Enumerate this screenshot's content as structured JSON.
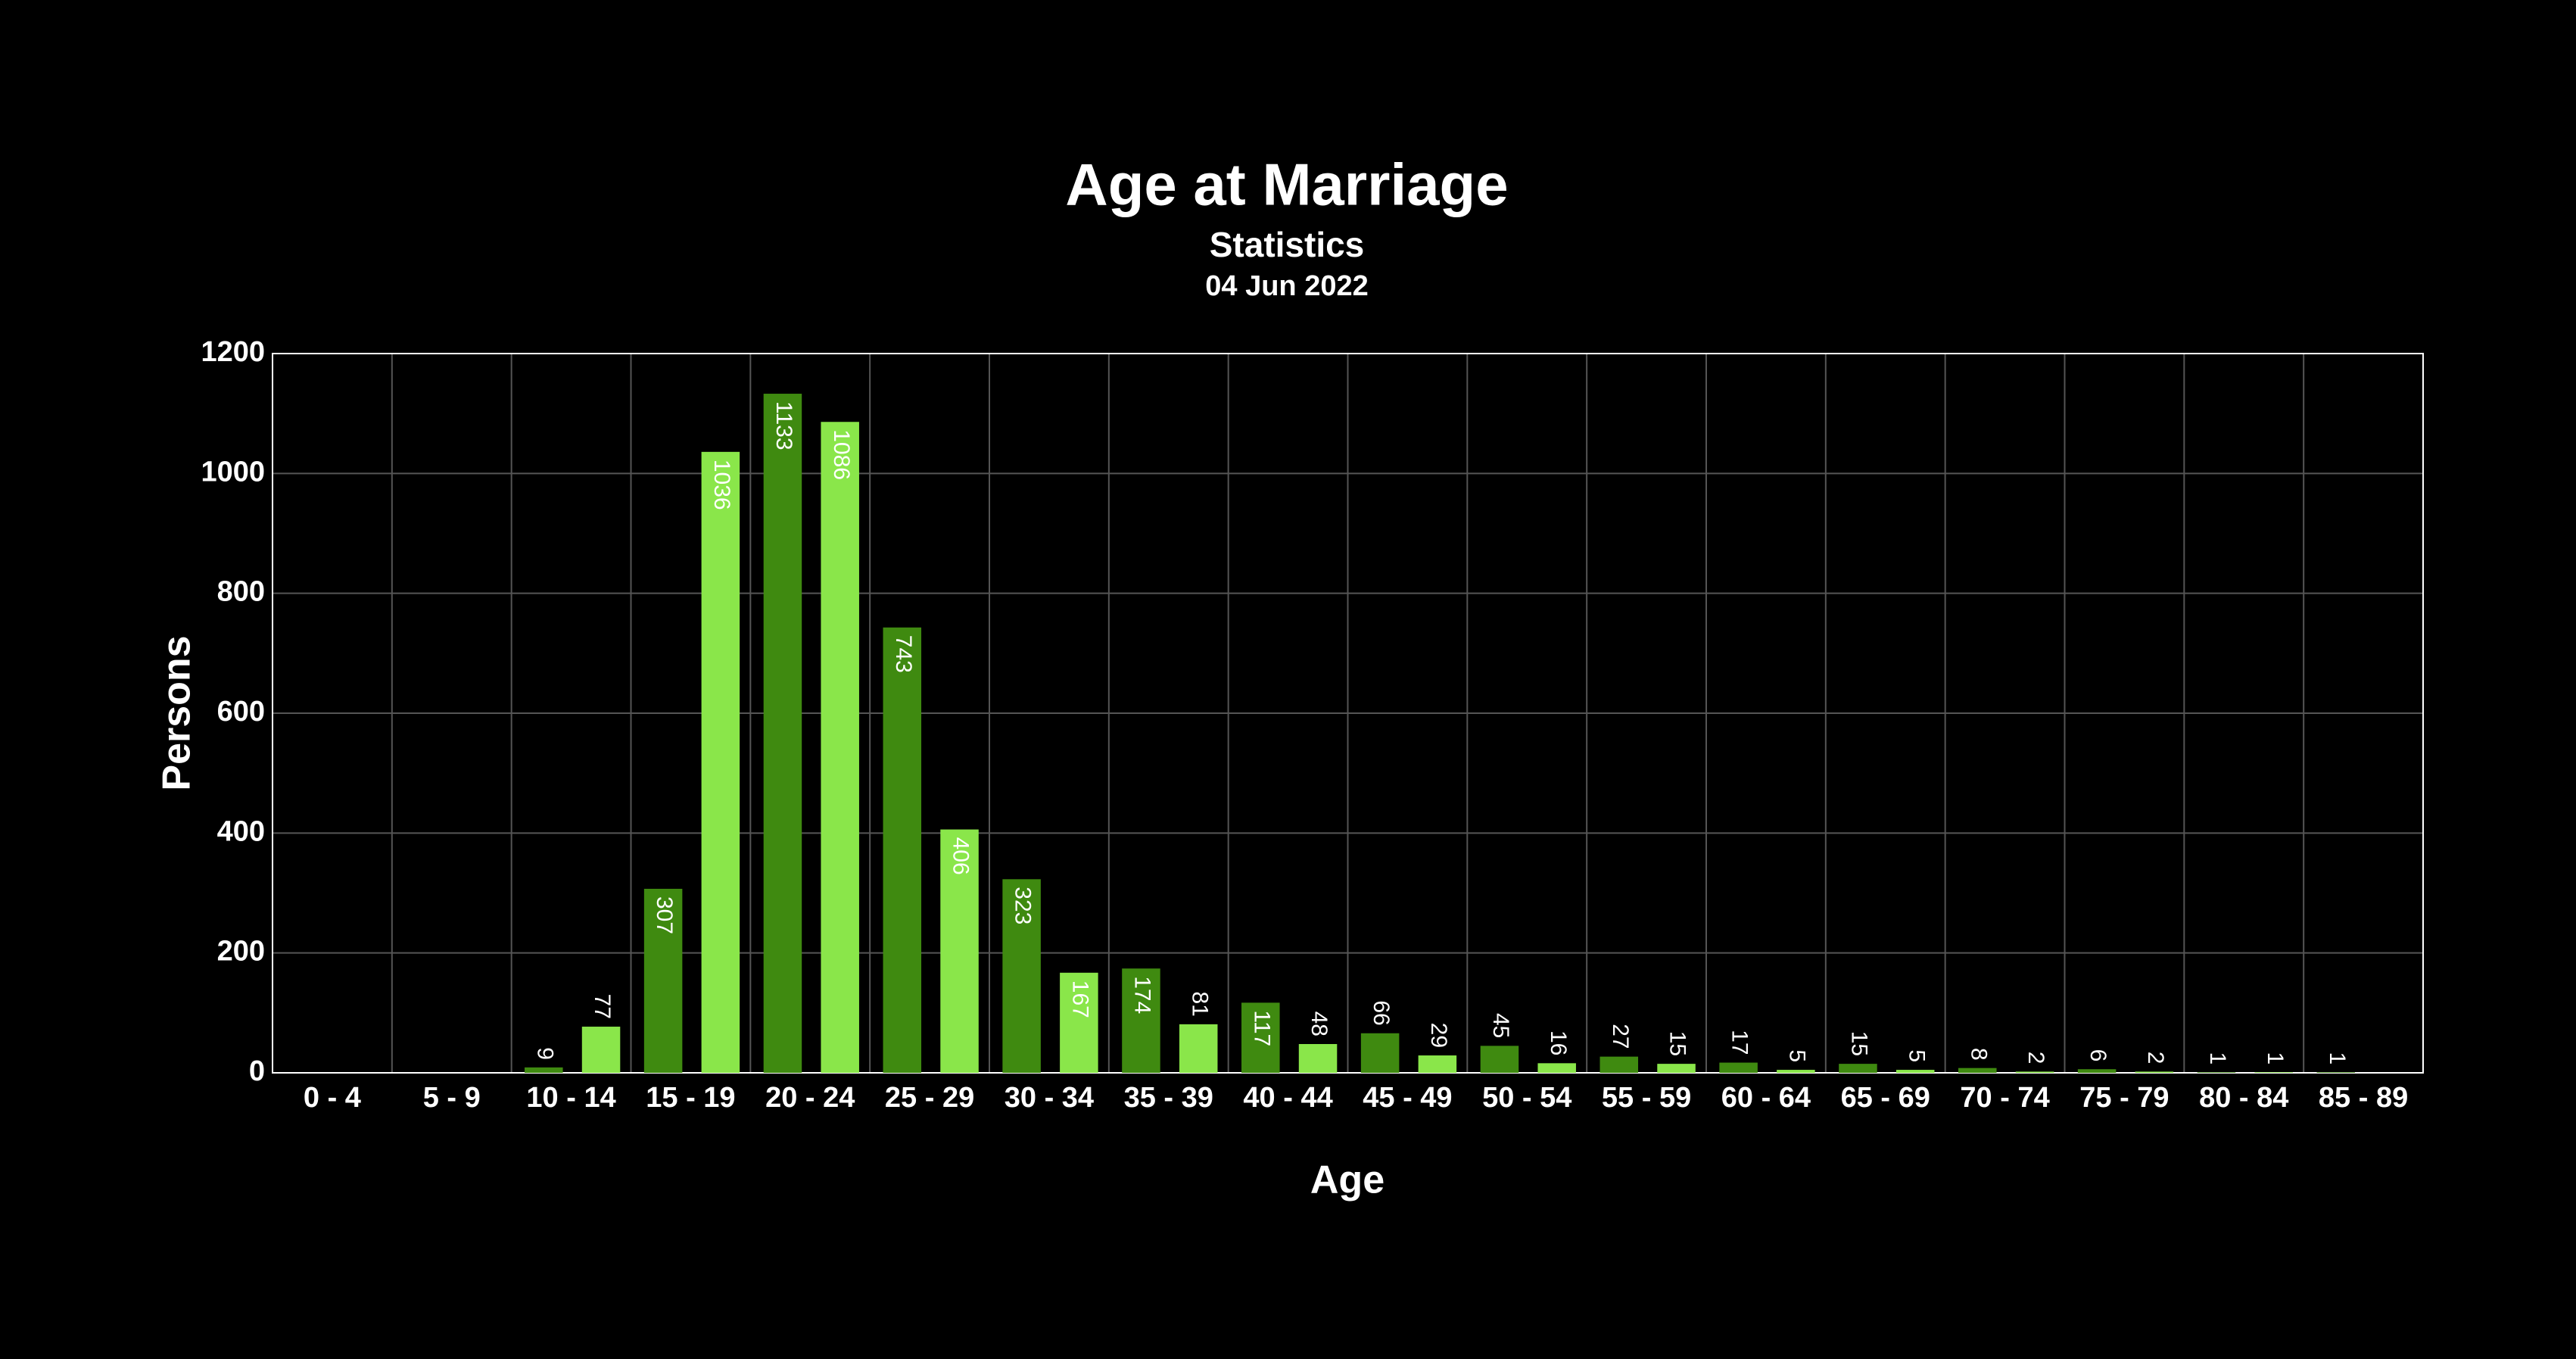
{
  "chart_data": {
    "type": "bar",
    "title": "Age at Marriage",
    "subtitle": "Statistics",
    "date": "04 Jun 2022",
    "x_label": "Age",
    "y_label": "Persons",
    "categories": [
      "0 - 4",
      "5 - 9",
      "10 - 14",
      "15 - 19",
      "20 - 24",
      "25 - 29",
      "30 - 34",
      "35 - 39",
      "40 - 44",
      "45 - 49",
      "50 - 54",
      "55 - 59",
      "60 - 64",
      "65 - 69",
      "70 - 74",
      "75 - 79",
      "80 - 84",
      "85 - 89"
    ],
    "series": [
      {
        "color": "#3f8a10",
        "values": [
          null,
          null,
          9,
          307,
          1133,
          743,
          323,
          174,
          117,
          66,
          45,
          27,
          17,
          15,
          8,
          6,
          1,
          1
        ]
      },
      {
        "color": "#8ae64a",
        "values": [
          null,
          null,
          77,
          1036,
          1086,
          406,
          167,
          81,
          48,
          29,
          16,
          15,
          5,
          5,
          2,
          2,
          1,
          null
        ]
      }
    ],
    "ylim": [
      0,
      1200
    ],
    "yticks": [
      0,
      200,
      400,
      600,
      800,
      1000,
      1200
    ],
    "grid": true
  }
}
